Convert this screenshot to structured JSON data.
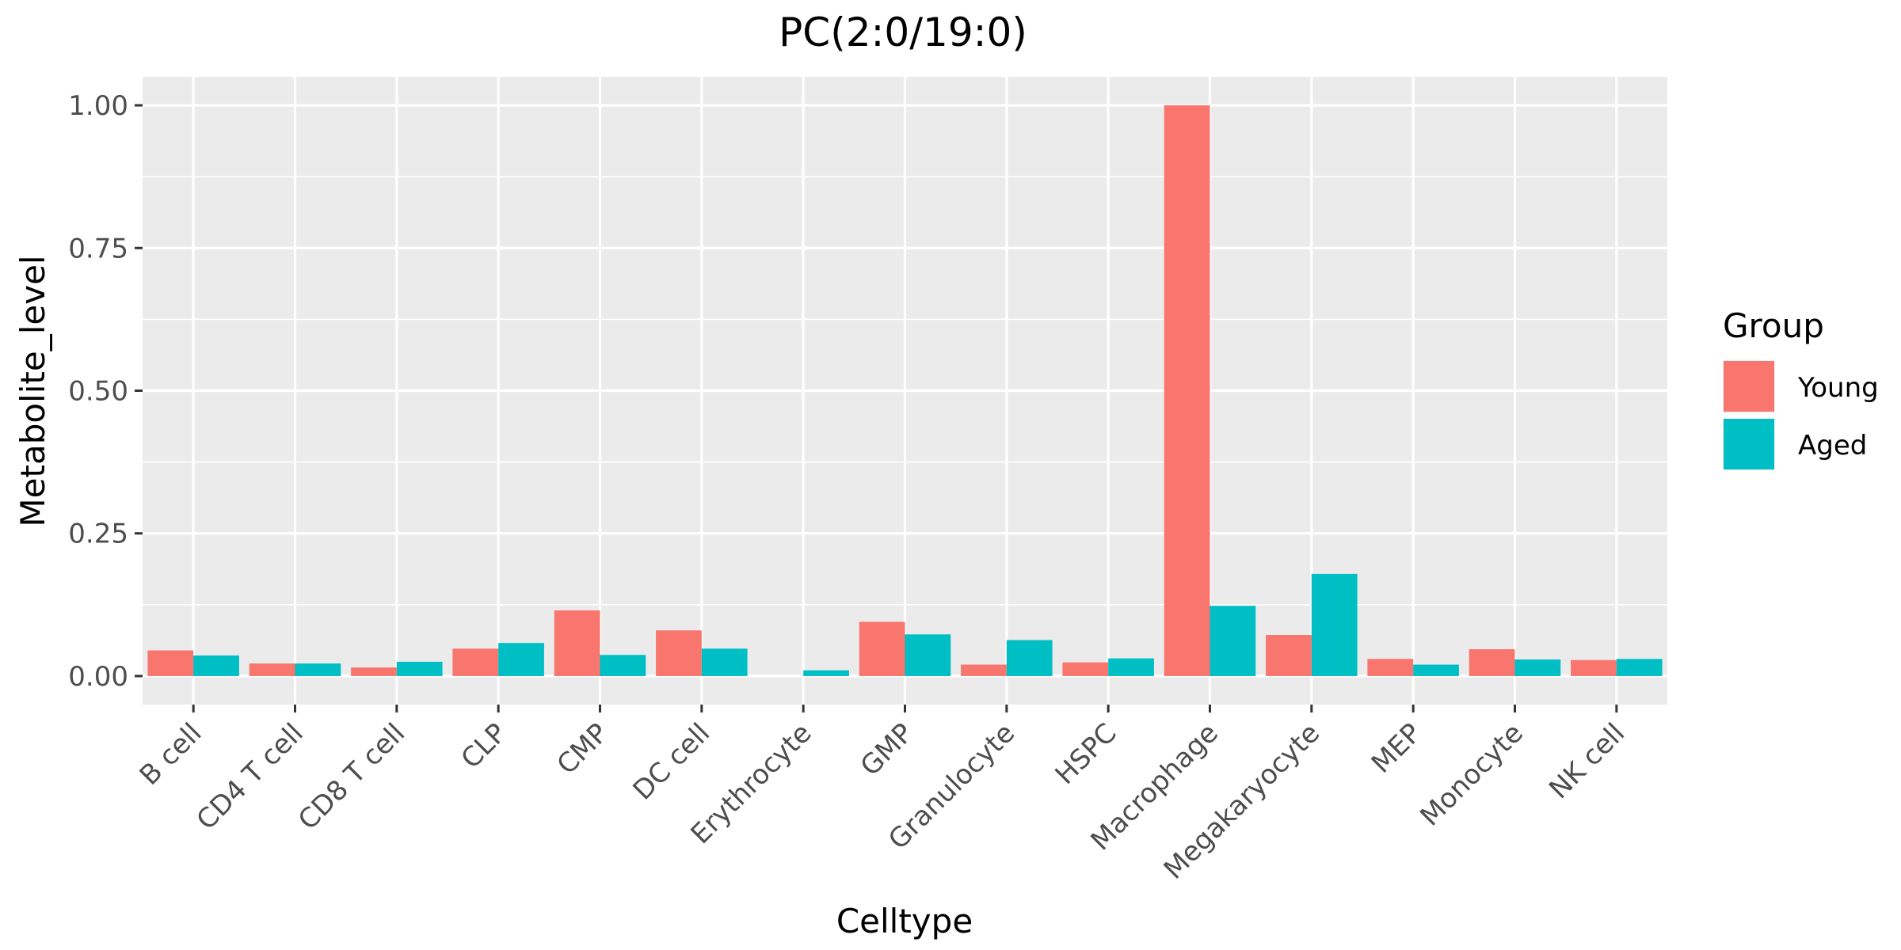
{
  "chart_data": {
    "type": "bar",
    "title": "PC(2:0/19:0)",
    "xlabel": "Celltype",
    "ylabel": "Metabolite_level",
    "ylim": [
      -0.05,
      1.05
    ],
    "y_ticks": [
      {
        "value": 0.0,
        "label": "0.00"
      },
      {
        "value": 0.25,
        "label": "0.25"
      },
      {
        "value": 0.5,
        "label": "0.50"
      },
      {
        "value": 0.75,
        "label": "0.75"
      },
      {
        "value": 1.0,
        "label": "1.00"
      }
    ],
    "grid": true,
    "legend": {
      "title": "Group",
      "position": "right"
    },
    "categories": [
      "B cell",
      "CD4 T cell",
      "CD8 T cell",
      "CLP",
      "CMP",
      "DC cell",
      "Erythrocyte",
      "GMP",
      "Granulocyte",
      "HSPC",
      "Macrophage",
      "Megakaryocyte",
      "MEP",
      "Monocyte",
      "NK cell"
    ],
    "series": [
      {
        "name": "Young",
        "color": "#F8766D",
        "values": [
          0.045,
          0.022,
          0.015,
          0.048,
          0.115,
          0.08,
          0.0,
          0.095,
          0.02,
          0.024,
          1.0,
          0.072,
          0.03,
          0.047,
          0.028
        ]
      },
      {
        "name": "Aged",
        "color": "#00BFC4",
        "values": [
          0.036,
          0.022,
          0.025,
          0.058,
          0.037,
          0.048,
          0.01,
          0.073,
          0.063,
          0.031,
          0.123,
          0.179,
          0.02,
          0.029,
          0.03
        ]
      }
    ]
  }
}
